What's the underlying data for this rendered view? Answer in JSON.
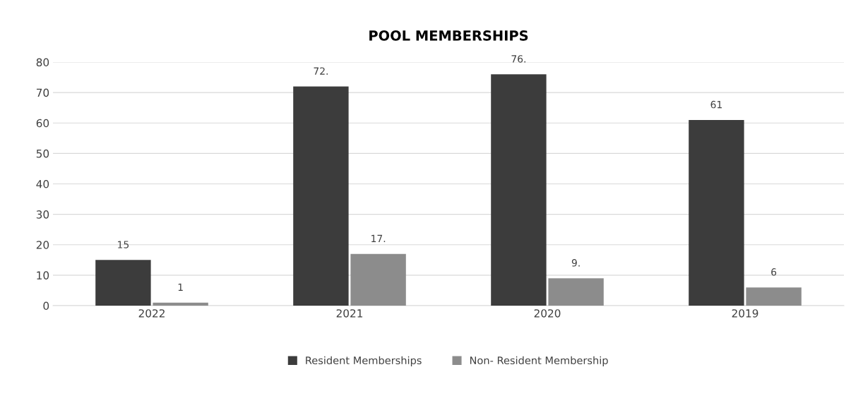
{
  "chart_data": {
    "type": "bar",
    "title": "POOL MEMBERSHIPS",
    "categories": [
      "2022",
      "2021",
      "2020",
      "2019"
    ],
    "series": [
      {
        "name": "Resident Memberships",
        "color": "#3c3c3c",
        "values": [
          15,
          72,
          76,
          61
        ],
        "value_labels": [
          "15",
          "72.",
          "76.",
          "61"
        ]
      },
      {
        "name": "Non- Resident Membership",
        "color": "#8c8c8c",
        "values": [
          1,
          17,
          9,
          6
        ],
        "value_labels": [
          "1",
          "17.",
          "9.",
          "6"
        ]
      }
    ],
    "ylim": [
      0,
      80
    ],
    "yticks": [
      0,
      10,
      20,
      30,
      40,
      50,
      60,
      70,
      80
    ],
    "grid": "y",
    "legend": "bottom"
  }
}
